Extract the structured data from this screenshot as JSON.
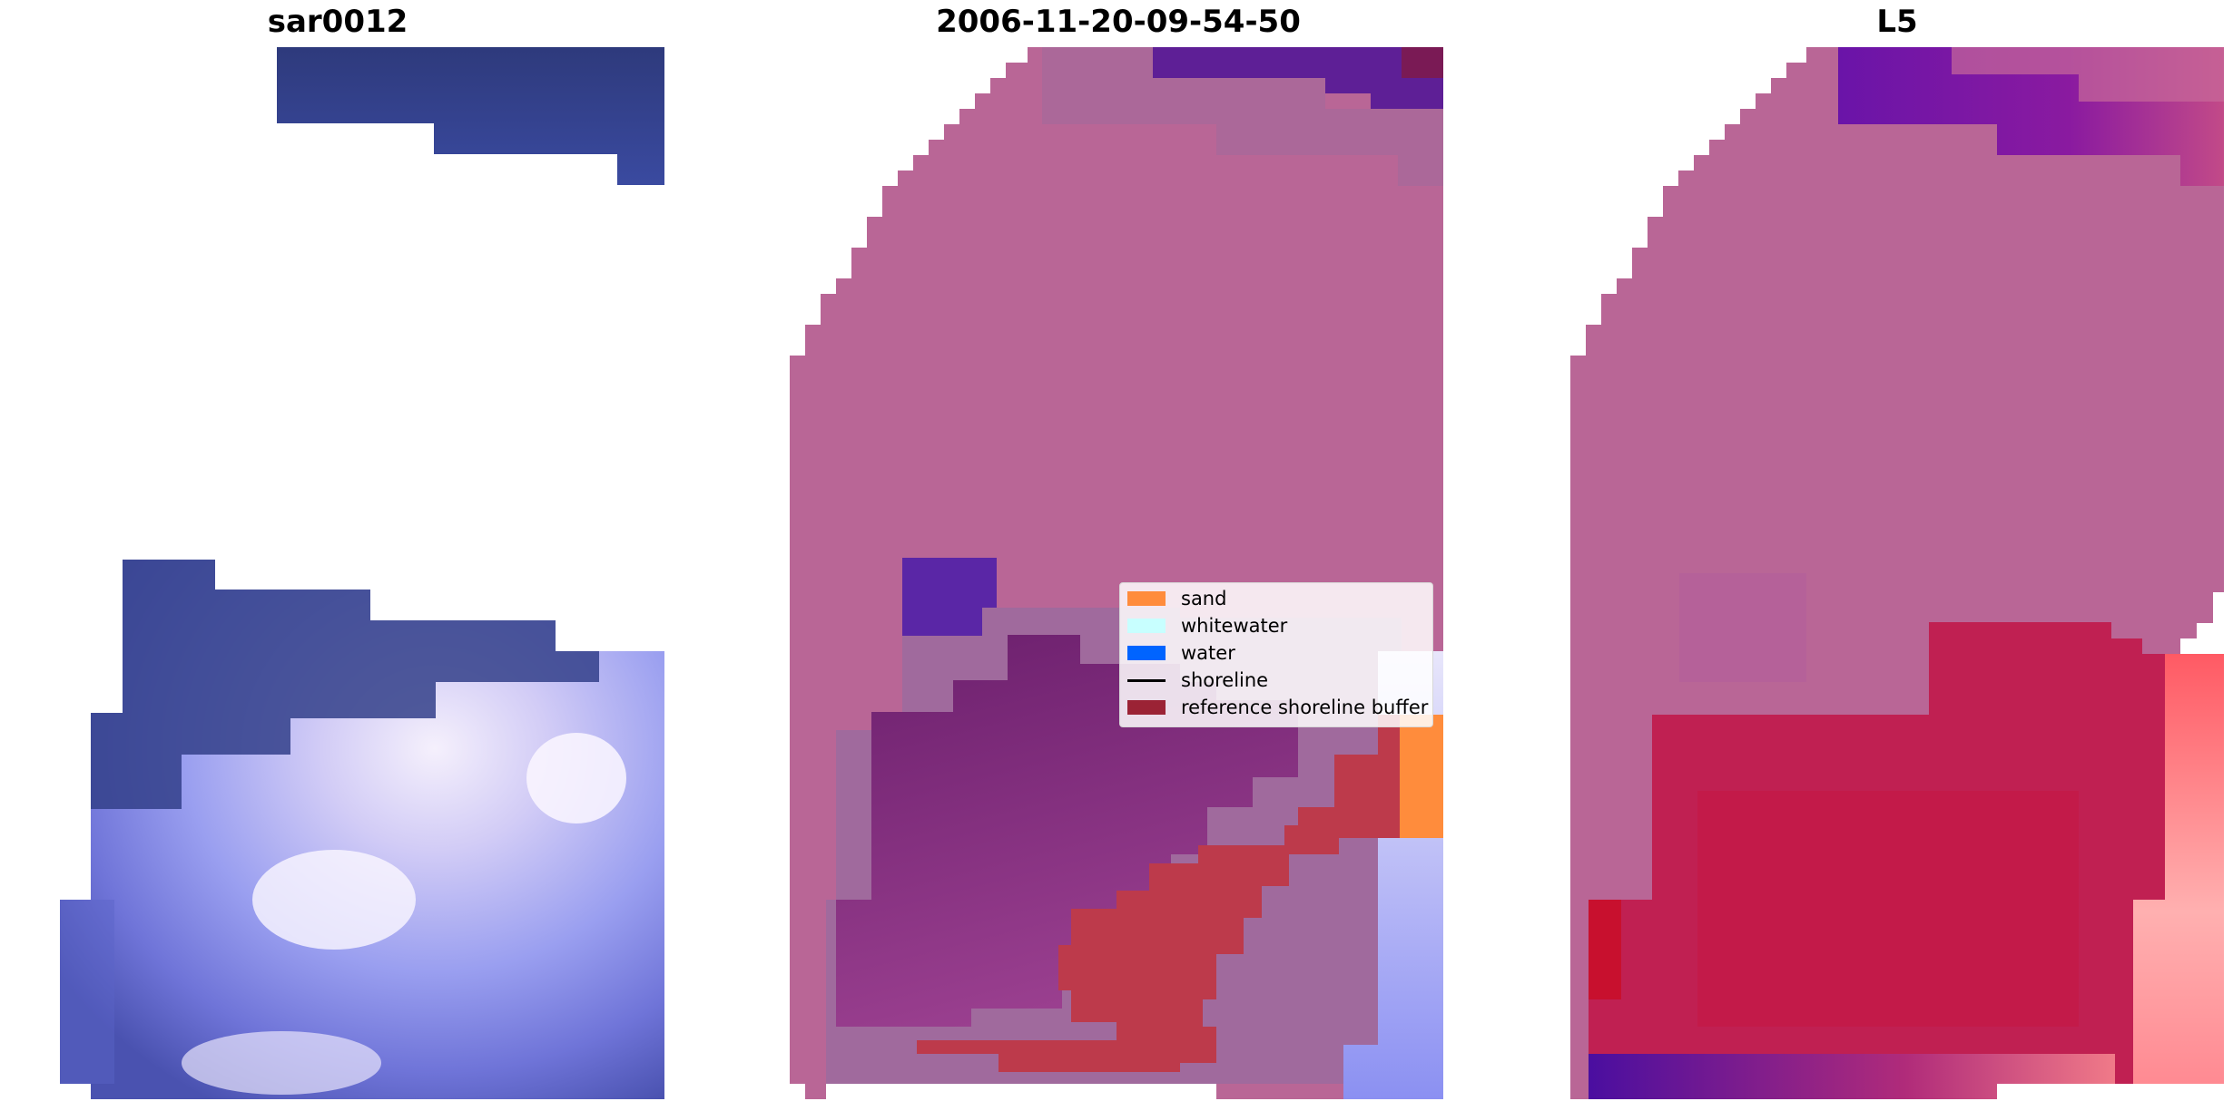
{
  "panels": [
    {
      "title": "sar0012"
    },
    {
      "title": "2006-11-20-09-54-50"
    },
    {
      "title": "L5"
    }
  ],
  "legend": {
    "items": [
      {
        "label": "sand",
        "color": "#ff8c3c",
        "kind": "patch"
      },
      {
        "label": "whitewater",
        "color": "#c8ffff",
        "kind": "patch"
      },
      {
        "label": "water",
        "color": "#0064ff",
        "kind": "patch"
      },
      {
        "label": "shoreline",
        "color": "#000000",
        "kind": "line"
      },
      {
        "label": "reference shoreline buffer",
        "color": "#9b2335",
        "kind": "patch"
      }
    ]
  },
  "colors": {
    "background": "#ffffff",
    "dark_navy": "#2e3a7c",
    "periwinkle": "#8e95f2",
    "pale_lavender": "#e9e6fb",
    "pink_mask": "#b96696",
    "dark_purple": "#6b1f6d",
    "crimson": "#c02052",
    "violet": "#5a14a0"
  }
}
